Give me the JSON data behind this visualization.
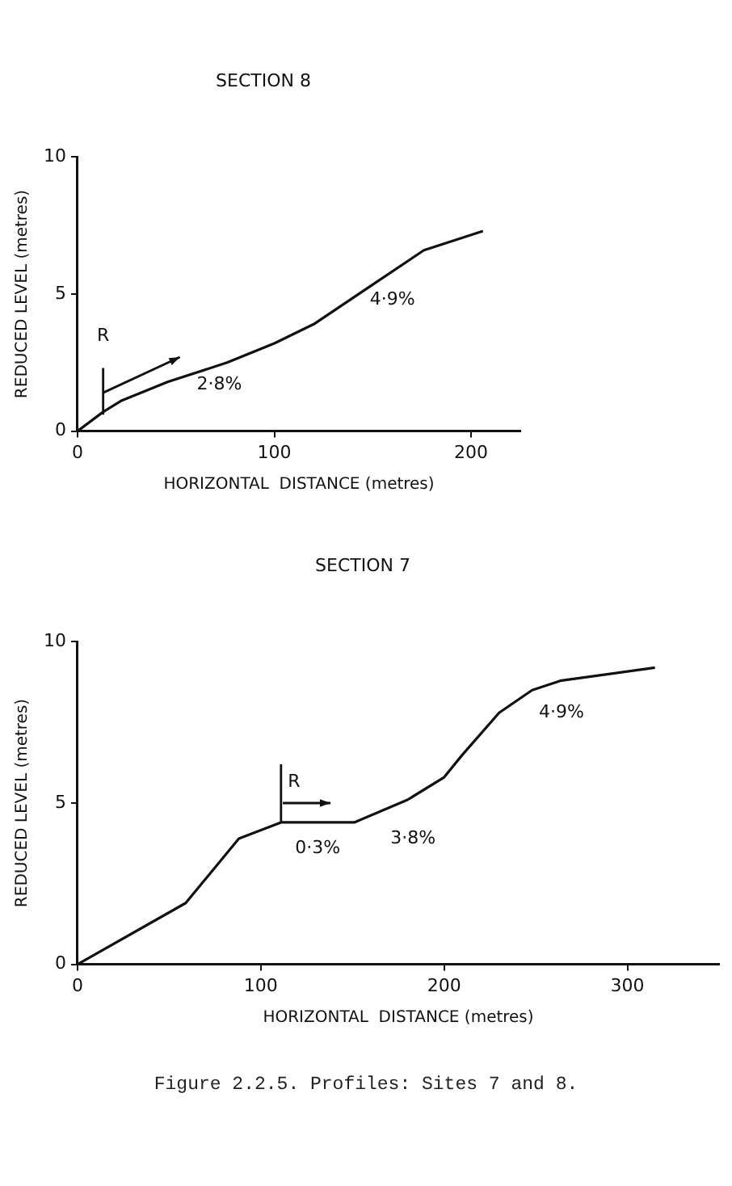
{
  "chart_data": [
    {
      "type": "line",
      "title": "SECTION 8",
      "xlabel": "HORIZONTAL  DISTANCE (metres)",
      "ylabel": "REDUCED LEVEL (metres)",
      "x": [
        0,
        13,
        22,
        46,
        76,
        100,
        120,
        149,
        176,
        206
      ],
      "series": [
        {
          "color": "#111111",
          "values": [
            0,
            0.7,
            1.1,
            1.8,
            2.5,
            3.2,
            3.9,
            5.3,
            6.6,
            7.3
          ]
        }
      ],
      "xlim": [
        0,
        225
      ],
      "xticks": [
        0,
        100,
        200
      ],
      "ylim": [
        0,
        10
      ],
      "yticks": [
        0,
        5,
        10
      ],
      "grid": false,
      "legend": false,
      "marker": "none",
      "line_style": "solid",
      "annotations": [
        {
          "text": "R",
          "x": 13,
          "y": 0.7
        },
        "2·8%",
        "4·9%"
      ]
    },
    {
      "type": "line",
      "title": "SECTION 7",
      "xlabel": "HORIZONTAL  DISTANCE (metres)",
      "ylabel": "REDUCED LEVEL (metres)",
      "x": [
        0,
        59,
        88,
        111,
        151,
        180,
        200,
        210,
        230,
        248,
        264,
        315
      ],
      "series": [
        {
          "color": "#111111",
          "values": [
            0,
            1.9,
            3.9,
            4.4,
            4.4,
            5.1,
            5.8,
            6.5,
            7.8,
            8.5,
            8.8,
            9.2
          ]
        }
      ],
      "xlim": [
        0,
        350
      ],
      "xticks": [
        0,
        100,
        200,
        300
      ],
      "ylim": [
        0,
        10
      ],
      "yticks": [
        0,
        5,
        10
      ],
      "grid": false,
      "legend": false,
      "marker": "none",
      "line_style": "solid",
      "annotations": [
        {
          "text": "R",
          "x": 111,
          "y": 4.4
        },
        "0·3%",
        "3·8%",
        "4·9%",
        "Figure 2.2.5.  Profiles: Sites 7 and 8."
      ]
    }
  ]
}
